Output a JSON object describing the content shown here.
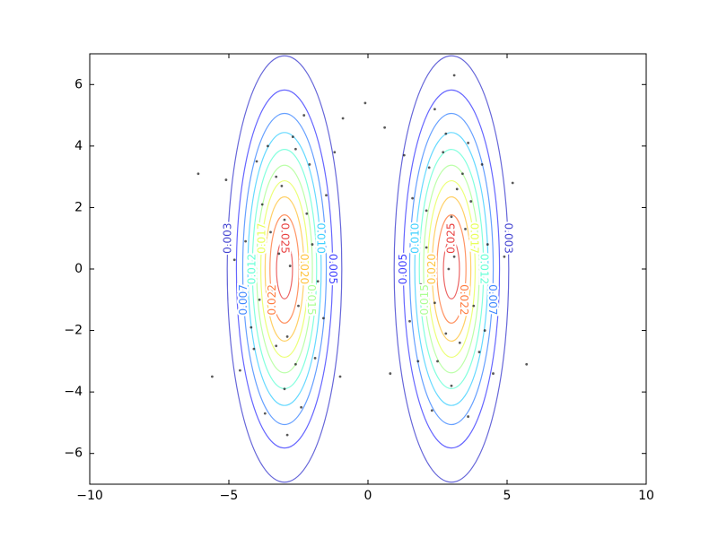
{
  "chart_data": {
    "type": "contour",
    "xlim": [
      -10,
      10
    ],
    "ylim": [
      -7,
      7
    ],
    "xticks": [
      {
        "value": -10,
        "label": "−10"
      },
      {
        "value": -5,
        "label": "−5"
      },
      0,
      5,
      10
    ],
    "yticks": [
      {
        "value": -6,
        "label": "−6"
      },
      {
        "value": -4,
        "label": "−4"
      },
      {
        "value": -2,
        "label": "−2"
      },
      0,
      2,
      4,
      6
    ],
    "components": [
      {
        "mean": [
          -3,
          0
        ],
        "sx": 0.95,
        "sy": 3.2,
        "weight": 0.5
      },
      {
        "mean": [
          3,
          0
        ],
        "sx": 0.95,
        "sy": 3.2,
        "weight": 0.5
      }
    ],
    "levels": [
      {
        "value": 0.0025,
        "label": "0.003"
      },
      {
        "value": 0.005,
        "label": "0.005"
      },
      {
        "value": 0.0075,
        "label": "0.007"
      },
      {
        "value": 0.01,
        "label": "0.010"
      },
      {
        "value": 0.0125,
        "label": "0.012"
      },
      {
        "value": 0.015,
        "label": "0.015"
      },
      {
        "value": 0.0175,
        "label": "0.017"
      },
      {
        "value": 0.02,
        "label": "0.020"
      },
      {
        "value": 0.0225,
        "label": "0.022"
      },
      {
        "value": 0.025,
        "label": "0.025"
      }
    ],
    "level_colors": [
      "#0000c0",
      "#0000ff",
      "#0060ff",
      "#00c0ff",
      "#30ffc8",
      "#90ff70",
      "#e0ff20",
      "#ffb000",
      "#ff5000",
      "#e00000"
    ],
    "scatter": {
      "color": "#000000",
      "x": [
        -3.2,
        -2.5,
        -3.8,
        -2.1,
        -4.1,
        -3.0,
        -2.7,
        -3.5,
        -1.8,
        -4.4,
        -2.9,
        -3.3,
        -2.2,
        -3.9,
        -2.6,
        -3.1,
        -1.5,
        -4.6,
        -2.4,
        -3.6,
        -2.8,
        -3.4,
        -1.9,
        -4.0,
        -2.3,
        -3.7,
        -1.2,
        -5.1,
        -6.1,
        -5.6,
        -1.0,
        -0.9,
        -2.0,
        -3.0,
        -4.2,
        -2.6,
        -3.3,
        -1.6,
        -4.8,
        -2.9,
        3.1,
        2.4,
        3.7,
        2.2,
        4.0,
        3.0,
        2.8,
        3.5,
        1.9,
        4.3,
        2.8,
        3.4,
        2.1,
        3.8,
        2.5,
        3.2,
        1.6,
        4.5,
        2.3,
        3.6,
        2.9,
        3.3,
        1.8,
        4.1,
        2.4,
        3.6,
        1.3,
        5.2,
        5.7,
        0.8,
        0.6,
        2.1,
        3.0,
        4.2,
        2.7,
        3.3,
        1.5,
        4.9,
        3.1,
        -0.1
      ],
      "y": [
        0.5,
        -1.2,
        2.1,
        3.4,
        -2.6,
        -3.9,
        4.3,
        1.2,
        -0.4,
        0.9,
        -2.2,
        3.0,
        1.8,
        -1.0,
        -3.1,
        2.7,
        2.4,
        -3.3,
        -4.5,
        4.0,
        0.1,
        -0.7,
        -2.9,
        3.5,
        5.0,
        -4.7,
        3.8,
        2.9,
        3.1,
        -3.5,
        -3.5,
        4.9,
        0.8,
        1.6,
        -1.9,
        3.9,
        -2.5,
        -1.6,
        0.3,
        -5.4,
        0.4,
        -1.1,
        2.2,
        3.3,
        -2.7,
        -3.8,
        4.4,
        1.3,
        -0.5,
        0.8,
        -2.1,
        3.1,
        1.9,
        -1.2,
        -3.0,
        2.6,
        2.3,
        -3.4,
        -4.6,
        4.1,
        0.0,
        -0.8,
        -3.0,
        3.4,
        5.2,
        -4.8,
        3.7,
        2.8,
        -3.1,
        -3.4,
        4.6,
        0.7,
        1.7,
        -2.0,
        3.8,
        -2.4,
        -1.7,
        0.4,
        6.3,
        5.4
      ]
    }
  }
}
